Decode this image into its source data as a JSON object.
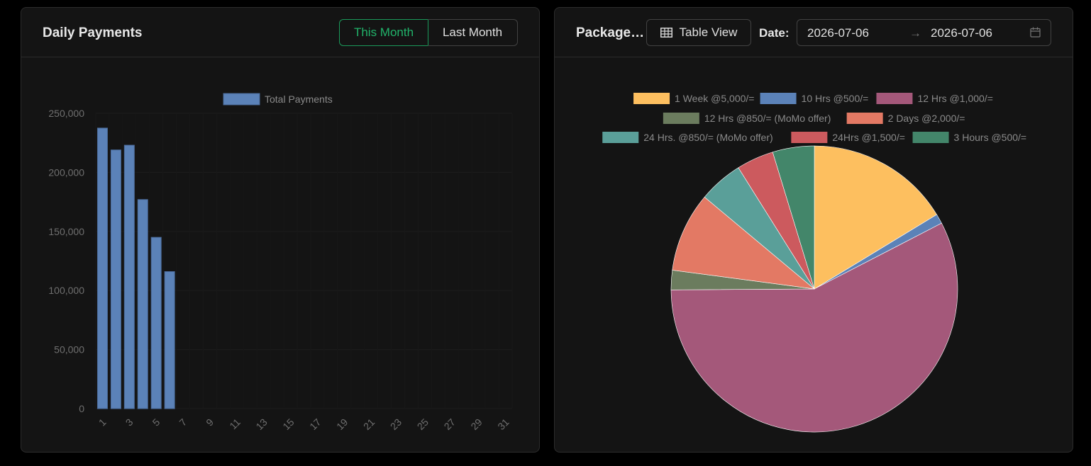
{
  "daily": {
    "title": "Daily Payments",
    "btn_this_month": "This Month",
    "btn_last_month": "Last Month"
  },
  "package": {
    "title": "Package ...",
    "table_view": "Table View",
    "date_label": "Date:",
    "date_start": "2026-07-06",
    "date_arrow": "→",
    "date_end": "2026-07-06"
  },
  "colors": {
    "bar": "#5b82b8",
    "accent_green": "#21b36a",
    "axis_text": "#6f6f6f",
    "legend_text": "#8a8a8a"
  },
  "chart_data": [
    {
      "type": "bar",
      "legend": [
        "Total Payments"
      ],
      "categories": [
        "1",
        "2",
        "3",
        "4",
        "5",
        "6",
        "7",
        "8",
        "9",
        "10",
        "11",
        "12",
        "13",
        "14",
        "15",
        "16",
        "17",
        "18",
        "19",
        "20",
        "21",
        "22",
        "23",
        "24",
        "25",
        "26",
        "27",
        "28",
        "29",
        "30",
        "31"
      ],
      "tick_labels": [
        "1",
        "3",
        "5",
        "7",
        "9",
        "11",
        "13",
        "15",
        "17",
        "19",
        "21",
        "23",
        "25",
        "27",
        "29",
        "31"
      ],
      "series": [
        {
          "name": "Total Payments",
          "values": [
            237500,
            219000,
            223000,
            177000,
            145000,
            116000,
            0,
            0,
            0,
            0,
            0,
            0,
            0,
            0,
            0,
            0,
            0,
            0,
            0,
            0,
            0,
            0,
            0,
            0,
            0,
            0,
            0,
            0,
            0,
            0,
            0
          ]
        }
      ],
      "ylim": [
        0,
        250000
      ],
      "yticks": [
        0,
        50000,
        100000,
        150000,
        200000,
        250000
      ],
      "ytick_labels": [
        "0",
        "50,000",
        "100,000",
        "150,000",
        "200,000",
        "250,000"
      ],
      "legend_position": "top"
    },
    {
      "type": "pie",
      "legend_position": "top",
      "slices": [
        {
          "label": "1 Week @5,000/=",
          "value": 16.3,
          "color": "#fdbf5f"
        },
        {
          "label": "10 Hrs @500/=",
          "value": 1.1,
          "color": "#5b82b8"
        },
        {
          "label": "12 Hrs @1,000/=",
          "value": 57.5,
          "color": "#a4587a"
        },
        {
          "label": "12 Hrs @850/= (MoMo offer)",
          "value": 2.2,
          "color": "#6b7c5e"
        },
        {
          "label": "2 Days @2,000/=",
          "value": 9.0,
          "color": "#e37964"
        },
        {
          "label": "24 Hrs. @850/= (MoMo offer)",
          "value": 5.0,
          "color": "#5a9f99"
        },
        {
          "label": "24Hrs @1,500/=",
          "value": 4.2,
          "color": "#cc5a5e"
        },
        {
          "label": "3 Hours @500/=",
          "value": 4.7,
          "color": "#43866a"
        }
      ]
    }
  ]
}
